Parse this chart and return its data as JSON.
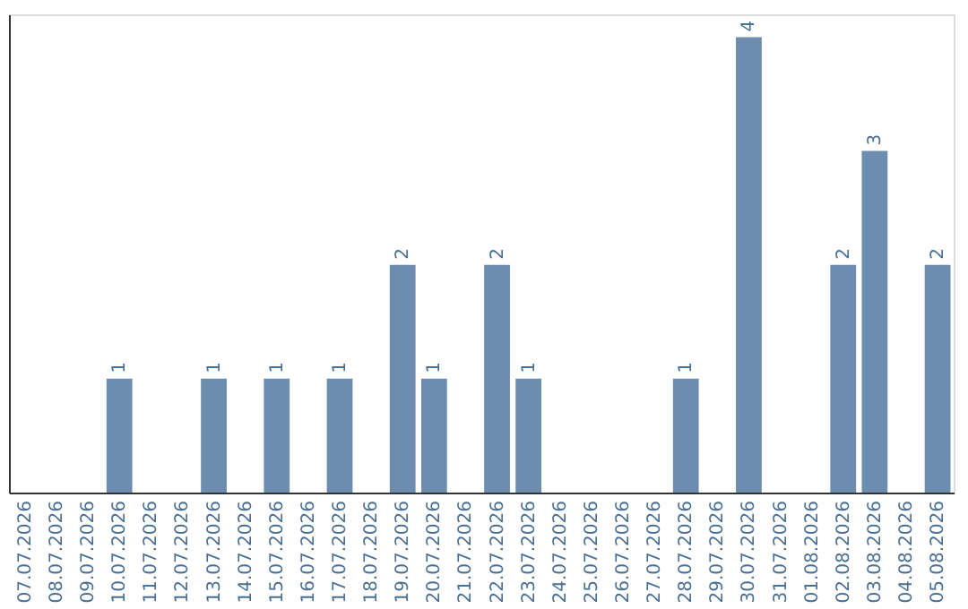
{
  "chart_data": {
    "type": "bar",
    "categories": [
      "07.07.2026",
      "08.07.2026",
      "09.07.2026",
      "10.07.2026",
      "11.07.2026",
      "12.07.2026",
      "13.07.2026",
      "14.07.2026",
      "15.07.2026",
      "16.07.2026",
      "17.07.2026",
      "18.07.2026",
      "19.07.2026",
      "20.07.2026",
      "21.07.2026",
      "22.07.2026",
      "23.07.2026",
      "24.07.2026",
      "25.07.2026",
      "26.07.2026",
      "27.07.2026",
      "28.07.2026",
      "29.07.2026",
      "30.07.2026",
      "31.07.2026",
      "01.08.2026",
      "02.08.2026",
      "03.08.2026",
      "04.08.2026",
      "05.08.2026"
    ],
    "values": [
      0,
      0,
      0,
      1,
      0,
      0,
      1,
      0,
      1,
      0,
      1,
      0,
      2,
      1,
      0,
      2,
      1,
      0,
      0,
      0,
      0,
      1,
      0,
      4,
      0,
      0,
      2,
      3,
      0,
      2
    ],
    "value_labels": [
      null,
      null,
      null,
      "1",
      null,
      null,
      "1",
      null,
      "1",
      null,
      "1",
      null,
      "2",
      "1",
      null,
      "2",
      "1",
      null,
      null,
      null,
      null,
      "1",
      null,
      "4",
      null,
      null,
      "2",
      "3",
      null,
      "2"
    ],
    "color": "#6d8daf",
    "ylim": [
      0,
      4.2
    ],
    "grid": false,
    "tick_labels": "x"
  }
}
